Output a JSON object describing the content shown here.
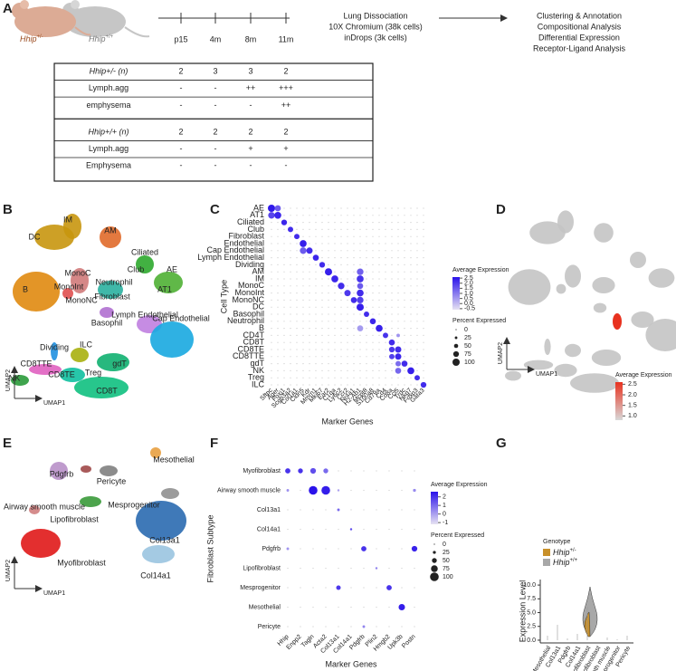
{
  "panel_labels": [
    "A",
    "B",
    "C",
    "D",
    "E",
    "F",
    "G"
  ],
  "panel_a": {
    "genotypes": [
      {
        "gene": "Hhip",
        "genotype": "+/-"
      },
      {
        "gene": "Hhip",
        "genotype": "+/+"
      }
    ],
    "timepoints": [
      "p15",
      "4m",
      "8m",
      "11m"
    ],
    "sequencing": [
      "Lung Dissociation",
      "10X Chromium (38k cells)",
      "inDrops (3k cells)"
    ],
    "analysis": [
      "Clustering & Annotation",
      "Compositional Analysis",
      "Differential Expression",
      "Receptor-Ligand Analysis"
    ],
    "table": {
      "rows": [
        {
          "label": "Hhip+/- (n)",
          "cells": [
            2,
            3,
            3,
            2
          ]
        },
        {
          "label": "Lymph.agg",
          "cells": [
            "-",
            "-",
            "++",
            "+++"
          ]
        },
        {
          "label": "emphysema",
          "cells": [
            "-",
            "-",
            "-",
            "++"
          ]
        },
        {
          "label": "Hhip+/+ (n)",
          "cells": [
            2,
            2,
            2,
            2
          ]
        },
        {
          "label": "Lymph.agg",
          "cells": [
            "-",
            "-",
            "+",
            "+"
          ]
        },
        {
          "label": "Emphysema",
          "cells": [
            "-",
            "-",
            "-",
            "-"
          ]
        }
      ]
    }
  },
  "panel_b": {
    "clusters": [
      "IM",
      "AM",
      "DC",
      "Ciliated",
      "MonoC",
      "Club",
      "AE",
      "MonoInt",
      "Neutrophil",
      "AT1",
      "MonoNC",
      "Fibroblast",
      "B",
      "Basophil",
      "Lymph Endothelial",
      "Cap Endothelial",
      "Dividing",
      "ILC",
      "CD8TTE",
      "gdT",
      "NK",
      "CD8TE",
      "Treg",
      "CD8T"
    ],
    "xlabel": "UMAP1",
    "ylabel": "UMAP2"
  },
  "panel_c": {
    "ylabel": "Cell Type",
    "xlabel": "Marker Genes",
    "rows": [
      "AE",
      "AT1",
      "Ciliated",
      "Club",
      "Fibroblast",
      "Endothelial",
      "Cap Endothelial",
      "Lymph Endothelial",
      "Dividing",
      "AM",
      "IM",
      "MonoC",
      "MonoInt",
      "MonoNC",
      "DC",
      "Basophil",
      "Neutrophil",
      "B",
      "CD4T",
      "CD8T",
      "CD8TE",
      "CD8TTE",
      "gdT",
      "NK",
      "Treg",
      "ILC"
    ],
    "genes": [
      "Sftpc",
      "Ager",
      "Foxj1",
      "Scgb3a2",
      "Col1a1",
      "Cldn5",
      "Kdr",
      "Mmrn1",
      "Mki67",
      "Ear2",
      "C1qa",
      "Ly6c2",
      "Ccr2",
      "Nr4a1",
      "H2-Ab1",
      "Mcpt8",
      "S100a8",
      "Cd79a",
      "Cd4",
      "Cd8a",
      "Ccl5",
      "Trdc",
      "Nkg7",
      "Foxp3",
      "Gata3"
    ],
    "dots": [
      [
        0,
        0,
        100,
        2.5
      ],
      [
        0,
        1,
        80,
        1.5
      ],
      [
        1,
        0,
        90,
        1.8
      ],
      [
        1,
        1,
        95,
        2.3
      ],
      [
        2,
        2,
        75,
        2.3
      ],
      [
        3,
        3,
        70,
        2.2
      ],
      [
        4,
        4,
        70,
        2.2
      ],
      [
        5,
        5,
        95,
        2.4
      ],
      [
        6,
        5,
        90,
        1.5
      ],
      [
        6,
        6,
        85,
        2.2
      ],
      [
        7,
        7,
        80,
        2.3
      ],
      [
        8,
        8,
        75,
        2.2
      ],
      [
        9,
        9,
        100,
        2.4
      ],
      [
        9,
        14,
        90,
        1.4
      ],
      [
        10,
        10,
        95,
        2.3
      ],
      [
        10,
        14,
        95,
        2.1
      ],
      [
        11,
        11,
        90,
        2.2
      ],
      [
        11,
        14,
        80,
        1.5
      ],
      [
        12,
        12,
        85,
        2.0
      ],
      [
        12,
        14,
        95,
        2.2
      ],
      [
        13,
        13,
        80,
        2.2
      ],
      [
        13,
        14,
        90,
        1.9
      ],
      [
        14,
        14,
        100,
        2.4
      ],
      [
        15,
        15,
        70,
        2.2
      ],
      [
        16,
        16,
        80,
        2.3
      ],
      [
        17,
        17,
        95,
        2.4
      ],
      [
        17,
        14,
        80,
        0.5
      ],
      [
        18,
        18,
        70,
        2.1
      ],
      [
        18,
        20,
        40,
        0.6
      ],
      [
        19,
        19,
        80,
        2.2
      ],
      [
        20,
        19,
        75,
        2.0
      ],
      [
        20,
        20,
        85,
        2.2
      ],
      [
        21,
        19,
        70,
        1.9
      ],
      [
        21,
        20,
        85,
        2.3
      ],
      [
        22,
        21,
        80,
        2.2
      ],
      [
        22,
        20,
        70,
        1.2
      ],
      [
        23,
        22,
        95,
        2.4
      ],
      [
        23,
        20,
        80,
        1.3
      ],
      [
        24,
        23,
        70,
        2.2
      ],
      [
        25,
        24,
        75,
        2.2
      ]
    ],
    "legend_expression": {
      "title": "Average Expression",
      "lim": [
        -0.6,
        2.6
      ],
      "ticks": [
        2.5,
        {
          "value": 2,
          "label": "2.0"
        },
        1.5,
        {
          "value": 1,
          "label": "1.0"
        },
        0.5,
        {
          "value": 0,
          "label": "0.0"
        },
        -0.5
      ]
    },
    "legend_percent": {
      "title": "Percent Expressed",
      "ticks": [
        0,
        25,
        50,
        75,
        100
      ]
    }
  },
  "panel_d": {
    "xlabel": "UMAP1",
    "ylabel": "UMAP2",
    "legend": {
      "title": "Average Expression",
      "lim": [
        0.8,
        2.6
      ],
      "ticks": [
        2.5,
        {
          "value": 2,
          "label": "2.0"
        },
        1.5,
        {
          "value": 1,
          "label": "1.0"
        }
      ]
    }
  },
  "panel_e": {
    "clusters": [
      "Mesothelial",
      "Pdgfrb",
      "Pericyte",
      "Airway smooth muscle",
      "Mesprogenitor",
      "Lipofibroblast",
      "Col13a1",
      "Myofibroblast",
      "Col14a1"
    ],
    "xlabel": "UMAP1",
    "ylabel": "UMAP2"
  },
  "panel_f": {
    "ylabel": "Fibroblast Subtype",
    "xlabel": "Marker Genes",
    "rows": [
      "Myofibroblast",
      "Airway smooth muscle",
      "Col13a1",
      "Col14a1",
      "Pdgfrb",
      "Lipofibroblast",
      "Mesprogenitor",
      "Mesothelial",
      "Pericyte"
    ],
    "genes": [
      "Hhip",
      "Enpp2",
      "Tagln",
      "Acta2",
      "Col13a1",
      "Col14a1",
      "Pdgfrb",
      "Plin2",
      "Hmgb2",
      "Upk3b",
      "Postn"
    ],
    "dots": [
      [
        0,
        0,
        55,
        2.0
      ],
      [
        0,
        1,
        50,
        2.0
      ],
      [
        0,
        2,
        60,
        1.5
      ],
      [
        0,
        3,
        50,
        1.0
      ],
      [
        1,
        0,
        20,
        0.3
      ],
      [
        1,
        2,
        100,
        2.6
      ],
      [
        1,
        3,
        100,
        2.4
      ],
      [
        1,
        4,
        15,
        0.0
      ],
      [
        1,
        10,
        25,
        0.4
      ],
      [
        2,
        4,
        20,
        1.0
      ],
      [
        3,
        5,
        15,
        1.5
      ],
      [
        4,
        0,
        20,
        0.2
      ],
      [
        4,
        6,
        55,
        2.0
      ],
      [
        4,
        10,
        60,
        2.3
      ],
      [
        5,
        7,
        15,
        0.5
      ],
      [
        6,
        4,
        45,
        1.9
      ],
      [
        6,
        8,
        55,
        2.0
      ],
      [
        7,
        9,
        70,
        2.4
      ],
      [
        8,
        6,
        20,
        0.5
      ]
    ],
    "legend_expression": {
      "title": "Average Expression",
      "lim": [
        -1.2,
        2.6
      ],
      "ticks": [
        2,
        1,
        0,
        -1
      ]
    },
    "legend_percent": {
      "title": "Percent Expressed",
      "ticks": [
        0,
        25,
        50,
        75,
        100
      ]
    }
  },
  "panel_g": {
    "type": "violin",
    "ylabel": "Expression Level",
    "categories": [
      "Mesothelial",
      "Col13a1",
      "Pdgfrb",
      "Col14a1",
      "Lipofibroblast",
      "Myofibroblast",
      "Airway smooth muscle",
      "Mesprogenitor",
      "Pericyte"
    ],
    "ylim": [
      -0.5,
      11
    ],
    "yticks": [
      {
        "value": 0,
        "label": "0.0"
      },
      2.5,
      {
        "value": 5,
        "label": "5.0"
      },
      7.5,
      {
        "value": 10,
        "label": "10.0"
      }
    ],
    "legend": {
      "title": "Genotype",
      "entries": [
        {
          "gene": "Hhip",
          "genotype": "+/-",
          "color": "#c8902a"
        },
        {
          "gene": "Hhip",
          "genotype": "+/+",
          "color": "#a8a8a8"
        }
      ]
    }
  }
}
